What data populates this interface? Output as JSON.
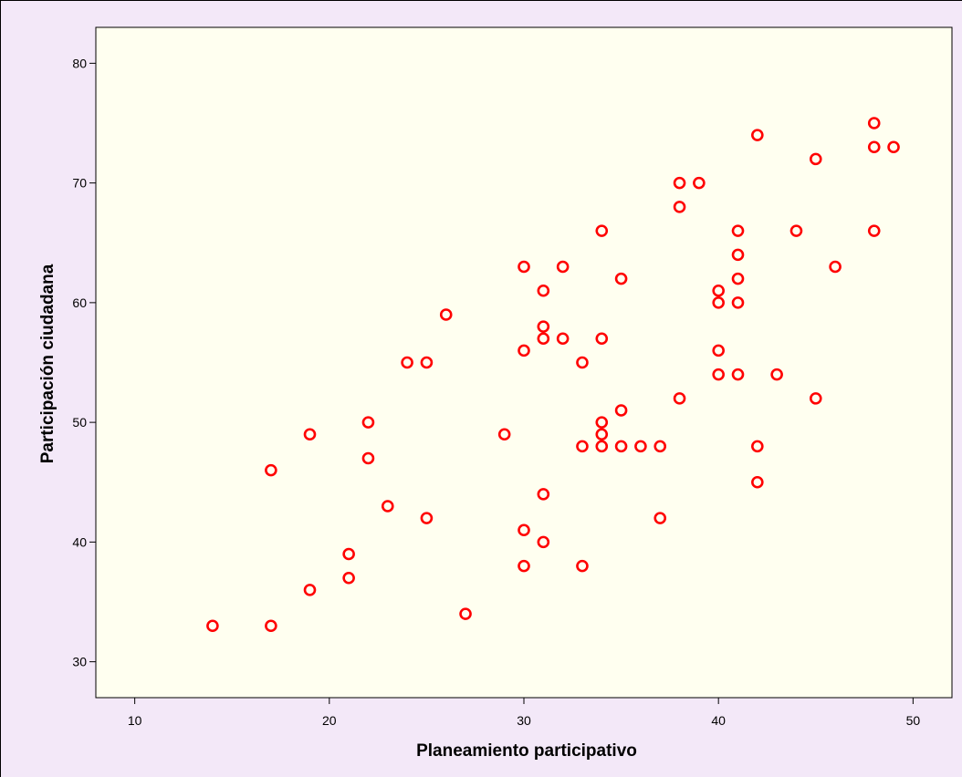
{
  "chart_data": {
    "type": "scatter",
    "title": "",
    "xlabel": "Planeamiento participativo",
    "ylabel": "Participación ciudadana",
    "xlim": [
      8,
      52
    ],
    "ylim": [
      27,
      83
    ],
    "xticks": [
      10,
      20,
      30,
      40,
      50
    ],
    "yticks": [
      30,
      40,
      50,
      60,
      70,
      80
    ],
    "grid": false,
    "marker": "open-circle",
    "colors": {
      "marker": "#ff0000",
      "plot_bg": "#fffff0",
      "page_bg": "#f3e8f8"
    },
    "points": [
      {
        "x": 14,
        "y": 33
      },
      {
        "x": 17,
        "y": 33
      },
      {
        "x": 17,
        "y": 46
      },
      {
        "x": 19,
        "y": 49
      },
      {
        "x": 19,
        "y": 36
      },
      {
        "x": 21,
        "y": 39
      },
      {
        "x": 21,
        "y": 37
      },
      {
        "x": 22,
        "y": 50
      },
      {
        "x": 22,
        "y": 47
      },
      {
        "x": 23,
        "y": 43
      },
      {
        "x": 24,
        "y": 55
      },
      {
        "x": 25,
        "y": 55
      },
      {
        "x": 25,
        "y": 42
      },
      {
        "x": 26,
        "y": 59
      },
      {
        "x": 27,
        "y": 34
      },
      {
        "x": 29,
        "y": 49
      },
      {
        "x": 30,
        "y": 63
      },
      {
        "x": 30,
        "y": 56
      },
      {
        "x": 30,
        "y": 41
      },
      {
        "x": 30,
        "y": 38
      },
      {
        "x": 31,
        "y": 61
      },
      {
        "x": 31,
        "y": 58
      },
      {
        "x": 31,
        "y": 57
      },
      {
        "x": 31,
        "y": 44
      },
      {
        "x": 31,
        "y": 40
      },
      {
        "x": 32,
        "y": 63
      },
      {
        "x": 32,
        "y": 57
      },
      {
        "x": 33,
        "y": 55
      },
      {
        "x": 33,
        "y": 48
      },
      {
        "x": 33,
        "y": 38
      },
      {
        "x": 34,
        "y": 66
      },
      {
        "x": 34,
        "y": 57
      },
      {
        "x": 34,
        "y": 50
      },
      {
        "x": 34,
        "y": 49
      },
      {
        "x": 34,
        "y": 48
      },
      {
        "x": 35,
        "y": 62
      },
      {
        "x": 35,
        "y": 51
      },
      {
        "x": 35,
        "y": 48
      },
      {
        "x": 36,
        "y": 48
      },
      {
        "x": 37,
        "y": 48
      },
      {
        "x": 37,
        "y": 42
      },
      {
        "x": 38,
        "y": 70
      },
      {
        "x": 38,
        "y": 68
      },
      {
        "x": 38,
        "y": 52
      },
      {
        "x": 39,
        "y": 70
      },
      {
        "x": 40,
        "y": 61
      },
      {
        "x": 40,
        "y": 60
      },
      {
        "x": 40,
        "y": 56
      },
      {
        "x": 40,
        "y": 54
      },
      {
        "x": 41,
        "y": 66
      },
      {
        "x": 41,
        "y": 64
      },
      {
        "x": 41,
        "y": 62
      },
      {
        "x": 41,
        "y": 60
      },
      {
        "x": 41,
        "y": 54
      },
      {
        "x": 42,
        "y": 74
      },
      {
        "x": 42,
        "y": 48
      },
      {
        "x": 42,
        "y": 45
      },
      {
        "x": 43,
        "y": 54
      },
      {
        "x": 44,
        "y": 66
      },
      {
        "x": 45,
        "y": 72
      },
      {
        "x": 45,
        "y": 52
      },
      {
        "x": 46,
        "y": 63
      },
      {
        "x": 48,
        "y": 75
      },
      {
        "x": 48,
        "y": 73
      },
      {
        "x": 48,
        "y": 66
      },
      {
        "x": 49,
        "y": 73
      }
    ]
  }
}
